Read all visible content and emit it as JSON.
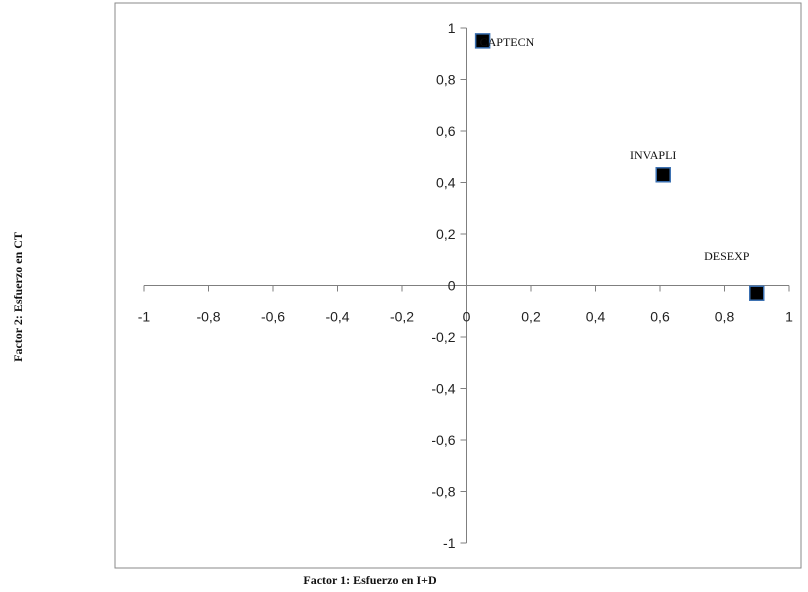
{
  "chart_data": {
    "type": "scatter",
    "title": "",
    "xlabel": "Factor 1: Esfuerzo en I+D",
    "ylabel": "Factor 2: Esfuerzo en CT",
    "xlim": [
      -1,
      1
    ],
    "ylim": [
      -1,
      1
    ],
    "x_ticks": [
      "-1",
      "-0,8",
      "-0,6",
      "-0,4",
      "-0,2",
      "0",
      "0,2",
      "0,4",
      "0,6",
      "0,8",
      "1"
    ],
    "y_ticks": [
      "-1",
      "-0,8",
      "-0,6",
      "-0,4",
      "-0,2",
      "0",
      "0,2",
      "0,4",
      "0,6",
      "0,8",
      "1"
    ],
    "grid": false,
    "marker_color": "#000000",
    "marker_edge_color": "#3a6fb0",
    "points": [
      {
        "label": "CAPTECN",
        "x": 0.05,
        "y": 0.95
      },
      {
        "label": "INVAPLI",
        "x": 0.61,
        "y": 0.43
      },
      {
        "label": "DESEXP",
        "x": 0.9,
        "y": -0.03
      }
    ]
  }
}
